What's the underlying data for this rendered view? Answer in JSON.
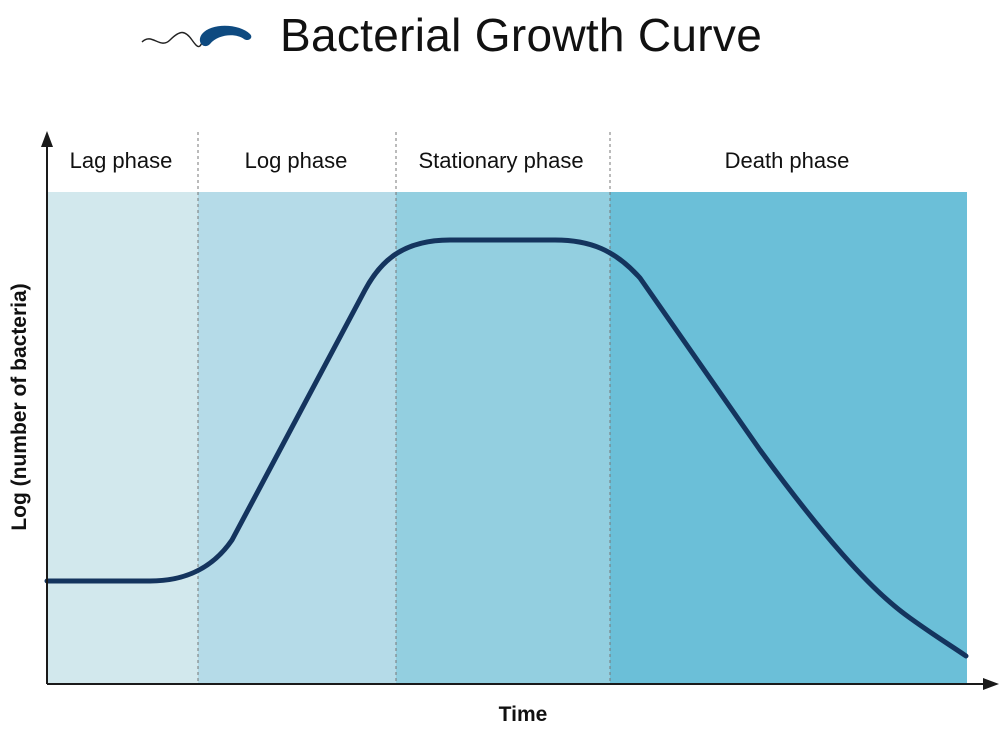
{
  "title": "Bacterial Growth Curve",
  "logo_icon": "bacterium-icon",
  "axes": {
    "xlabel": "Time",
    "ylabel": "Log (number of bacteria)"
  },
  "phases": [
    {
      "label": "Lag phase",
      "color": "#d2e8ed"
    },
    {
      "label": "Log phase",
      "color": "#b5dbe8"
    },
    {
      "label": "Stationary phase",
      "color": "#93cfe0"
    },
    {
      "label": "Death phase",
      "color": "#6bbfd8"
    }
  ],
  "colors": {
    "curve": "#14345e",
    "axis": "#1a1a1a",
    "divider": "#777777",
    "logo": "#0e4a80"
  }
}
